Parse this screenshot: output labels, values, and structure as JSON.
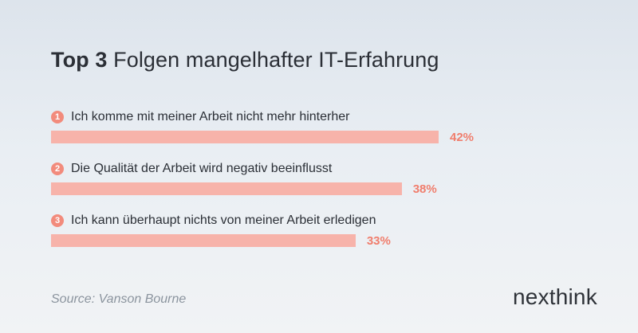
{
  "title": {
    "bold": "Top 3",
    "rest": "Folgen mangelhafter IT-Erfahrung"
  },
  "chart_data": {
    "type": "bar",
    "title": "Top 3 Folgen mangelhafter IT-Erfahrung",
    "categories": [
      "Ich komme mit meiner Arbeit nicht mehr hinterher",
      "Die Qualität der Arbeit wird negativ beeinflusst",
      "Ich kann überhaupt nichts von meiner Arbeit erledigen"
    ],
    "ranks": [
      "1",
      "2",
      "3"
    ],
    "values": [
      42,
      38,
      33
    ],
    "value_labels": [
      "42%",
      "38%",
      "33%"
    ],
    "colors": {
      "bar": "#f7b3aa",
      "badge": "#f28b7c",
      "value": "#f07d6c"
    }
  },
  "footer": {
    "source": "Source: Vanson Bourne",
    "logo": "nexthink"
  }
}
